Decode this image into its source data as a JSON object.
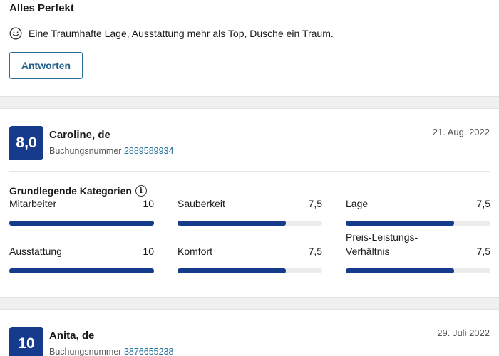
{
  "review1": {
    "title": "Alles Perfekt",
    "positive_icon": "smiley-icon",
    "positive_text": "Eine Traumhafte Lage, Ausstattung mehr als Top, Dusche ein Traum.",
    "reply_label": "Antworten"
  },
  "review2": {
    "score": "8,0",
    "name": "Caroline, de",
    "booking_label": "Buchungsnummer",
    "booking_number": "2889589934",
    "date": "21. Aug. 2022",
    "categories_title": "Grundlegende Kategorien",
    "categories": [
      {
        "label": "Mitarbeiter",
        "value": "10",
        "fraction": 1.0
      },
      {
        "label": "Sauberkeit",
        "value": "7,5",
        "fraction": 0.75
      },
      {
        "label": "Lage",
        "value": "7,5",
        "fraction": 0.75
      },
      {
        "label": "Ausstattung",
        "value": "10",
        "fraction": 1.0
      },
      {
        "label": "Komfort",
        "value": "7,5",
        "fraction": 0.75
      },
      {
        "label": "Preis-Leistungs-Verhältnis",
        "value": "7,5",
        "fraction": 0.75
      }
    ]
  },
  "review3": {
    "score": "10",
    "name": "Anita, de",
    "booking_label": "Buchungsnummer",
    "booking_number": "3876655238",
    "date": "29. Juli 2022"
  },
  "colors": {
    "score_bg": "#173b8c",
    "bar_fill": "#173b8c",
    "link": "#1f6f9a"
  }
}
